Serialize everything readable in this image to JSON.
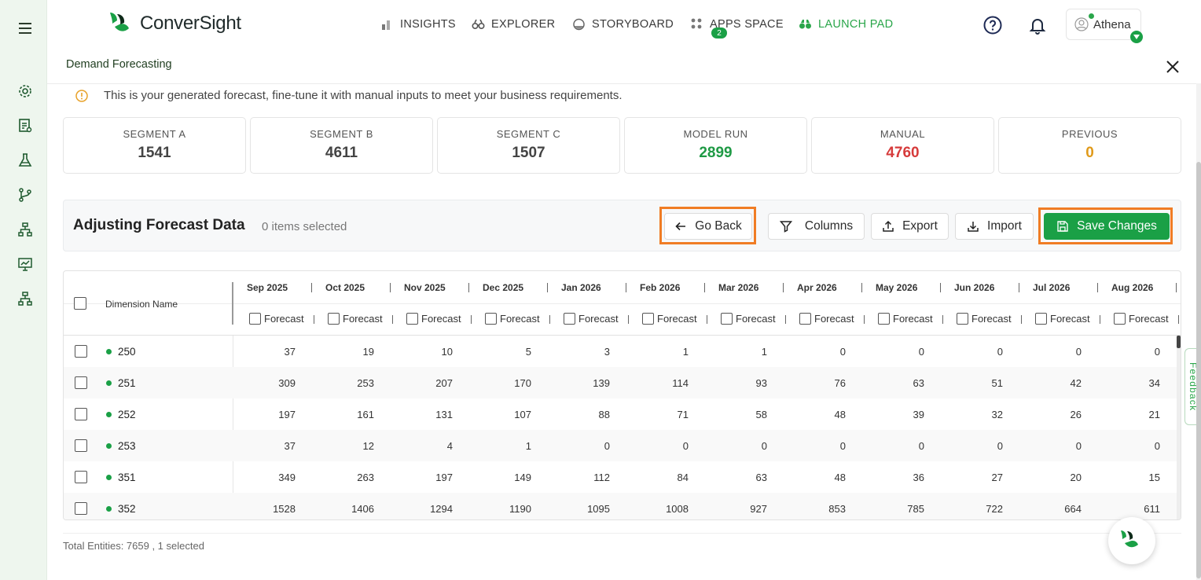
{
  "app": {
    "brand": "ConverSight"
  },
  "nav": {
    "items": [
      {
        "label": "INSIGHTS",
        "icon": "bar-chart-icon"
      },
      {
        "label": "EXPLORER",
        "icon": "binoculars-icon"
      },
      {
        "label": "STORYBOARD",
        "icon": "storyboard-icon",
        "badge": "2"
      },
      {
        "label": "APPS SPACE",
        "icon": "apps-grid-icon"
      },
      {
        "label": "LAUNCH PAD",
        "icon": "launchpad-icon",
        "active": true
      }
    ],
    "user": "Athena"
  },
  "panel": {
    "title": "Demand Forecasting",
    "info": "This is your generated forecast, fine-tune it with manual inputs to meet your business requirements."
  },
  "cards": [
    {
      "label": "SEGMENT A",
      "value": "1541",
      "color": "#444444"
    },
    {
      "label": "SEGMENT B",
      "value": "4611",
      "color": "#444444"
    },
    {
      "label": "SEGMENT C",
      "value": "1507",
      "color": "#444444"
    },
    {
      "label": "MODEL RUN",
      "value": "2899",
      "color": "#1f9a45"
    },
    {
      "label": "MANUAL",
      "value": "4760",
      "color": "#d63b3b"
    },
    {
      "label": "PREVIOUS",
      "value": "0",
      "color": "#e09a1a"
    }
  ],
  "toolbar": {
    "title": "Adjusting Forecast Data",
    "subtitle": "0 items selected",
    "go_back": "Go Back",
    "columns": "Columns",
    "export": "Export",
    "import": "Import",
    "save": "Save Changes"
  },
  "table": {
    "dimension_header": "Dimension Name",
    "sub_header": "Forecast",
    "months": [
      "Sep 2025",
      "Oct 2025",
      "Nov 2025",
      "Dec 2025",
      "Jan 2026",
      "Feb 2026",
      "Mar 2026",
      "Apr 2026",
      "May 2026",
      "Jun 2026",
      "Jul 2026",
      "Aug 2026"
    ],
    "rows": [
      {
        "name": "250",
        "values": [
          "37",
          "19",
          "10",
          "5",
          "3",
          "1",
          "1",
          "0",
          "0",
          "0",
          "0",
          "0"
        ]
      },
      {
        "name": "251",
        "values": [
          "309",
          "253",
          "207",
          "170",
          "139",
          "114",
          "93",
          "76",
          "63",
          "51",
          "42",
          "34"
        ]
      },
      {
        "name": "252",
        "values": [
          "197",
          "161",
          "131",
          "107",
          "88",
          "71",
          "58",
          "48",
          "39",
          "32",
          "26",
          "21"
        ]
      },
      {
        "name": "253",
        "values": [
          "37",
          "12",
          "4",
          "1",
          "0",
          "0",
          "0",
          "0",
          "0",
          "0",
          "0",
          "0"
        ]
      },
      {
        "name": "351",
        "values": [
          "349",
          "263",
          "197",
          "149",
          "112",
          "84",
          "63",
          "48",
          "36",
          "27",
          "20",
          "15"
        ]
      },
      {
        "name": "352",
        "values": [
          "1528",
          "1406",
          "1294",
          "1190",
          "1095",
          "1008",
          "927",
          "853",
          "785",
          "722",
          "664",
          "611"
        ]
      }
    ]
  },
  "footer": "Total Entities: 7659 , 1 selected",
  "feedback": "Feedback",
  "colors": {
    "accent": "#1aa046",
    "highlight": "#f07c24"
  }
}
